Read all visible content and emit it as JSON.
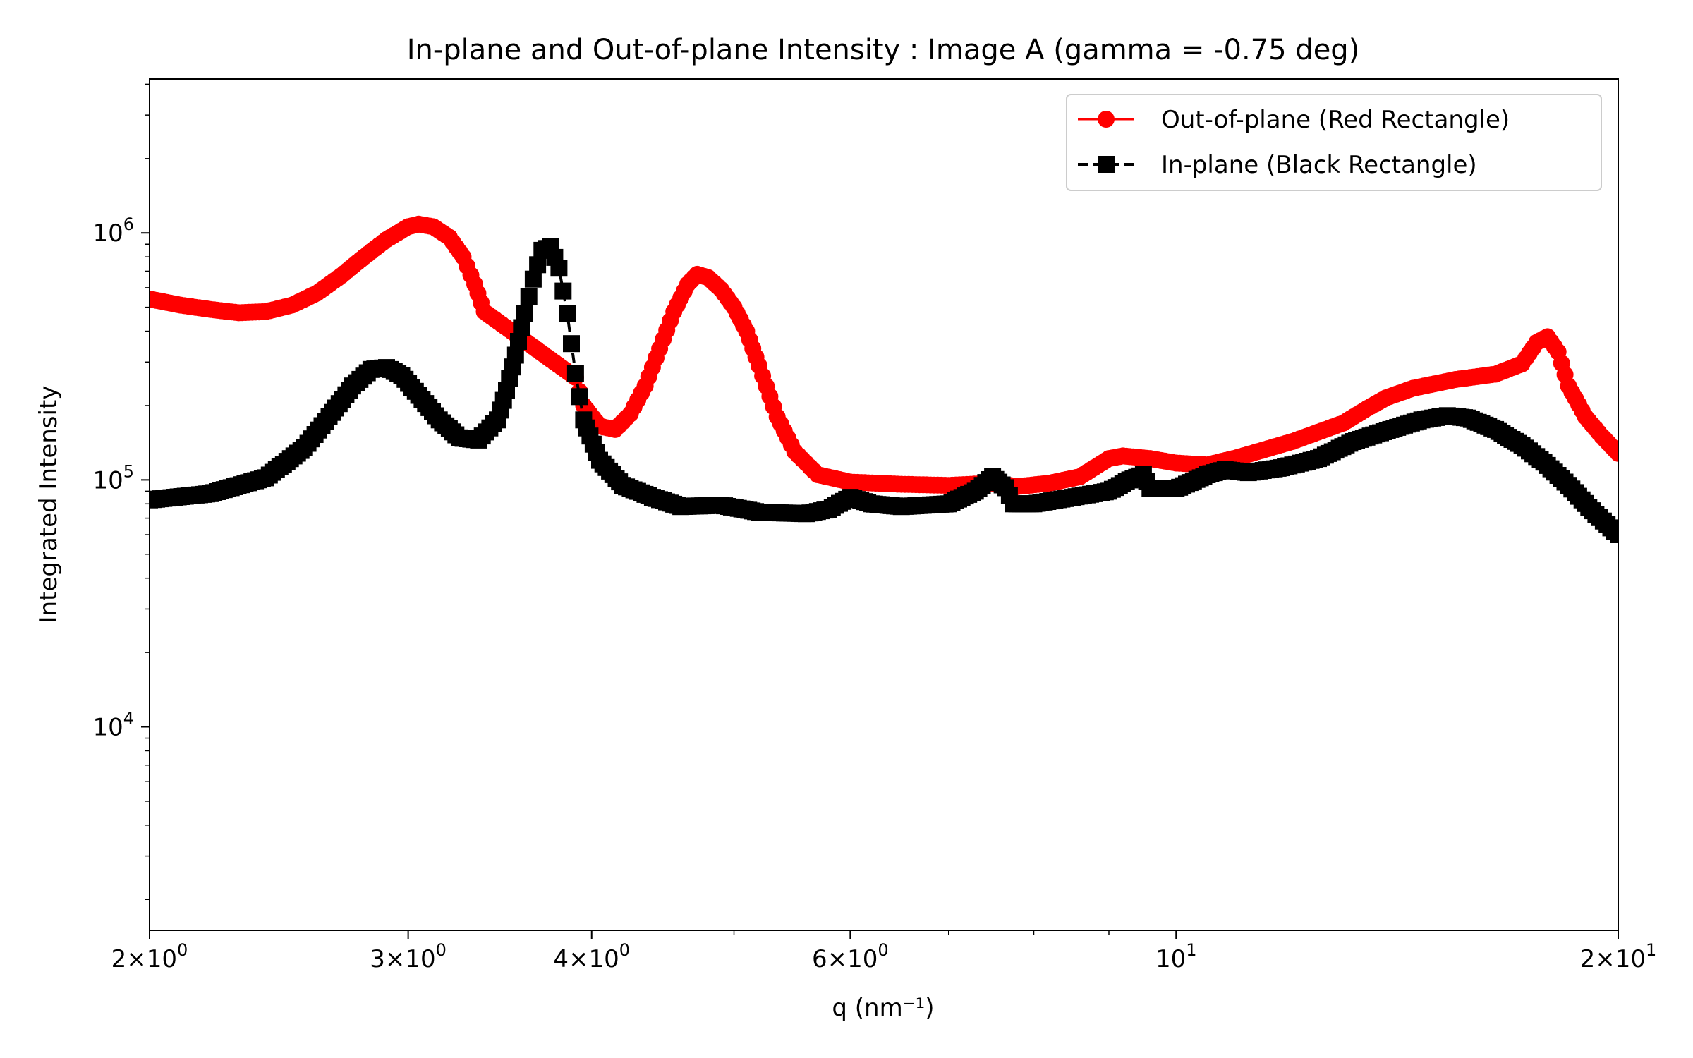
{
  "chart_data": {
    "type": "scatter",
    "title": "In-plane and Out-of-plane Intensity : Image A (gamma = -0.75 deg)",
    "xlabel": "q (nm⁻¹)",
    "ylabel": "Integrated Intensity",
    "xscale": "log",
    "yscale": "log",
    "xlim": [
      2,
      20
    ],
    "ylim": [
      1500,
      4200000
    ],
    "grid": false,
    "legend_position": "top-right",
    "x_ticks": [
      {
        "value": 2,
        "mantissa": "2",
        "exp": "0"
      },
      {
        "value": 3,
        "mantissa": "3",
        "exp": "0"
      },
      {
        "value": 4,
        "mantissa": "4",
        "exp": "0"
      },
      {
        "value": 6,
        "mantissa": "6",
        "exp": "0"
      },
      {
        "value": 10,
        "mantissa": "",
        "exp": "1"
      },
      {
        "value": 20,
        "mantissa": "2",
        "exp": "1"
      }
    ],
    "y_ticks": [
      {
        "value": 10000,
        "exp": "4"
      },
      {
        "value": 100000,
        "exp": "5"
      },
      {
        "value": 1000000,
        "exp": "6"
      }
    ],
    "series": [
      {
        "name": "Out-of-plane (Red Rectangle)",
        "color": "#ff0000",
        "marker": "circle",
        "linestyle": "solid",
        "points": [
          [
            2.0,
            540000
          ],
          [
            2.1,
            510000
          ],
          [
            2.2,
            490000
          ],
          [
            2.3,
            475000
          ],
          [
            2.4,
            480000
          ],
          [
            2.5,
            510000
          ],
          [
            2.6,
            570000
          ],
          [
            2.7,
            670000
          ],
          [
            2.8,
            800000
          ],
          [
            2.9,
            940000
          ],
          [
            3.0,
            1060000
          ],
          [
            3.05,
            1085000
          ],
          [
            3.12,
            1060000
          ],
          [
            3.2,
            960000
          ],
          [
            3.27,
            800000
          ],
          [
            3.33,
            620000
          ],
          [
            3.38,
            480000
          ],
          [
            3.9,
            260000
          ],
          [
            3.95,
            200000
          ],
          [
            4.05,
            165000
          ],
          [
            4.15,
            160000
          ],
          [
            4.25,
            185000
          ],
          [
            4.35,
            240000
          ],
          [
            4.45,
            340000
          ],
          [
            4.55,
            480000
          ],
          [
            4.65,
            620000
          ],
          [
            4.72,
            680000
          ],
          [
            4.8,
            660000
          ],
          [
            4.9,
            590000
          ],
          [
            5.0,
            500000
          ],
          [
            5.1,
            400000
          ],
          [
            5.2,
            290000
          ],
          [
            5.35,
            180000
          ],
          [
            5.5,
            130000
          ],
          [
            5.7,
            105000
          ],
          [
            6.0,
            98000
          ],
          [
            6.5,
            96000
          ],
          [
            7.0,
            95000
          ],
          [
            7.5,
            97000
          ],
          [
            7.8,
            94000
          ],
          [
            8.2,
            97000
          ],
          [
            8.6,
            103000
          ],
          [
            9.0,
            122000
          ],
          [
            9.2,
            125000
          ],
          [
            9.6,
            122000
          ],
          [
            10.0,
            117000
          ],
          [
            10.5,
            115000
          ],
          [
            11.0,
            123000
          ],
          [
            12.0,
            143000
          ],
          [
            13.0,
            170000
          ],
          [
            13.5,
            195000
          ],
          [
            13.9,
            215000
          ],
          [
            14.5,
            235000
          ],
          [
            15.5,
            255000
          ],
          [
            16.5,
            268000
          ],
          [
            17.2,
            295000
          ],
          [
            17.6,
            360000
          ],
          [
            17.9,
            380000
          ],
          [
            18.2,
            330000
          ],
          [
            18.5,
            240000
          ],
          [
            19.0,
            180000
          ],
          [
            19.5,
            150000
          ],
          [
            20.0,
            128000
          ]
        ]
      },
      {
        "name": "In-plane (Black Rectangle)",
        "color": "#000000",
        "marker": "square",
        "linestyle": "dashed",
        "points": [
          [
            2.0,
            83000
          ],
          [
            2.2,
            88000
          ],
          [
            2.4,
            102000
          ],
          [
            2.55,
            135000
          ],
          [
            2.65,
            180000
          ],
          [
            2.75,
            240000
          ],
          [
            2.83,
            280000
          ],
          [
            2.9,
            285000
          ],
          [
            2.97,
            265000
          ],
          [
            3.05,
            220000
          ],
          [
            3.15,
            175000
          ],
          [
            3.25,
            148000
          ],
          [
            3.35,
            145000
          ],
          [
            3.45,
            175000
          ],
          [
            3.5,
            230000
          ],
          [
            3.55,
            320000
          ],
          [
            3.6,
            470000
          ],
          [
            3.65,
            650000
          ],
          [
            3.7,
            850000
          ],
          [
            3.75,
            880000
          ],
          [
            3.8,
            720000
          ],
          [
            3.85,
            470000
          ],
          [
            3.9,
            270000
          ],
          [
            3.95,
            175000
          ],
          [
            4.05,
            120000
          ],
          [
            4.2,
            95000
          ],
          [
            4.4,
            85000
          ],
          [
            4.6,
            78000
          ],
          [
            4.9,
            79000
          ],
          [
            5.2,
            74000
          ],
          [
            5.6,
            73000
          ],
          [
            5.8,
            76000
          ],
          [
            6.0,
            85000
          ],
          [
            6.2,
            80000
          ],
          [
            6.5,
            78000
          ],
          [
            7.0,
            80000
          ],
          [
            7.3,
            90000
          ],
          [
            7.5,
            103000
          ],
          [
            7.65,
            93000
          ],
          [
            7.75,
            80000
          ],
          [
            8.0,
            80000
          ],
          [
            8.5,
            85000
          ],
          [
            9.0,
            90000
          ],
          [
            9.3,
            100000
          ],
          [
            9.5,
            105000
          ],
          [
            9.6,
            92000
          ],
          [
            10.0,
            92000
          ],
          [
            10.5,
            105000
          ],
          [
            10.8,
            110000
          ],
          [
            11.2,
            107000
          ],
          [
            11.8,
            112000
          ],
          [
            12.5,
            122000
          ],
          [
            13.2,
            143000
          ],
          [
            14.0,
            160000
          ],
          [
            14.7,
            175000
          ],
          [
            15.3,
            182000
          ],
          [
            15.8,
            178000
          ],
          [
            16.5,
            160000
          ],
          [
            17.2,
            138000
          ],
          [
            17.8,
            118000
          ],
          [
            18.5,
            95000
          ],
          [
            19.2,
            75000
          ],
          [
            20.0,
            60000
          ]
        ]
      }
    ]
  }
}
